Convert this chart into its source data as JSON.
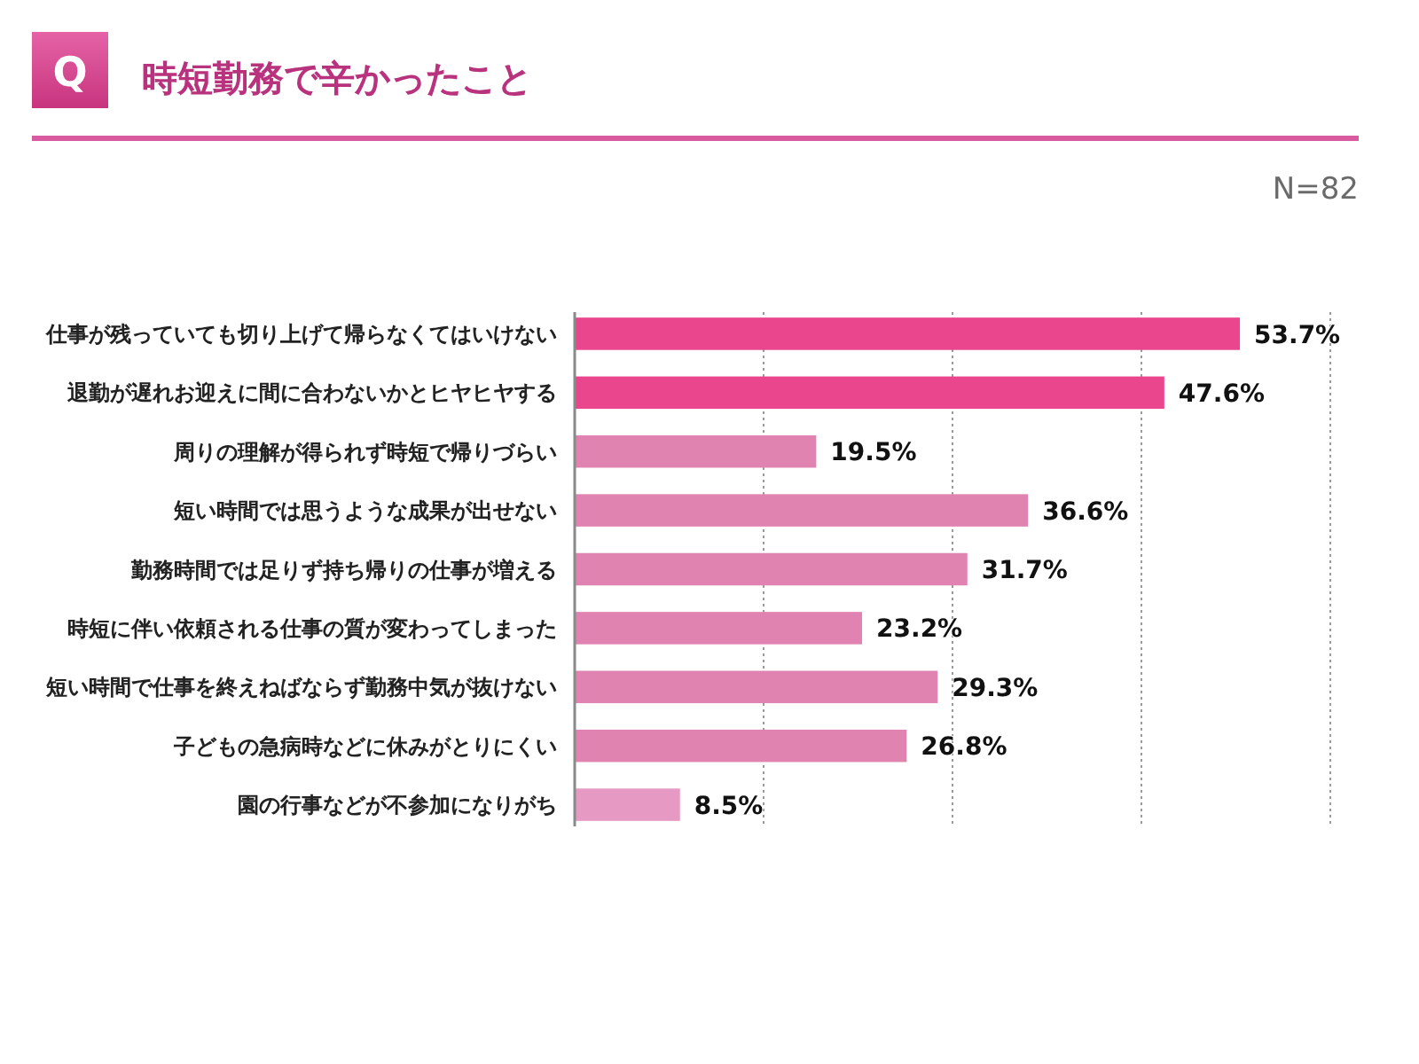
{
  "chart_data": {
    "type": "bar",
    "orientation": "horizontal",
    "title": "時短勤務で辛かったこと",
    "annotations": [
      "Q",
      "N=82"
    ],
    "categories": [
      "仕事が残っていても切り上げて帰らなくてはいけない",
      "退勤が遅れお迎えに間に合わないかとヒヤヒヤする",
      "周りの理解が得られず時短で帰りづらい",
      "短い時間では思うような成果が出せない",
      "勤務時間では足りず持ち帰りの仕事が増える",
      "時短に伴い依頼される仕事の質が変わってしまった",
      "短い時間で仕事を終えねばならず勤務中気が抜けない",
      "子どもの急病時などに休みがとりにくい",
      "園の行事などが不参加になりがち"
    ],
    "values": [
      53.7,
      47.6,
      19.5,
      36.6,
      31.7,
      23.2,
      29.3,
      26.8,
      8.5
    ],
    "value_labels": [
      "53.7%",
      "47.6%",
      "19.5%",
      "36.6%",
      "31.7%",
      "23.2%",
      "29.3%",
      "26.8%",
      "8.5%"
    ],
    "colors": [
      "#e9468e",
      "#e9468e",
      "#e083b1",
      "#e083b1",
      "#e083b1",
      "#e083b1",
      "#e083b1",
      "#e083b1",
      "#e699c2"
    ],
    "xlim": [
      0,
      61
    ],
    "xticks": [
      {
        "value": 15.25,
        "label": null
      },
      {
        "value": 30.5,
        "label": null
      },
      {
        "value": 45.75,
        "label": null
      },
      {
        "value": 61,
        "label": null
      }
    ],
    "grid": "x",
    "tick_labels": "y"
  }
}
